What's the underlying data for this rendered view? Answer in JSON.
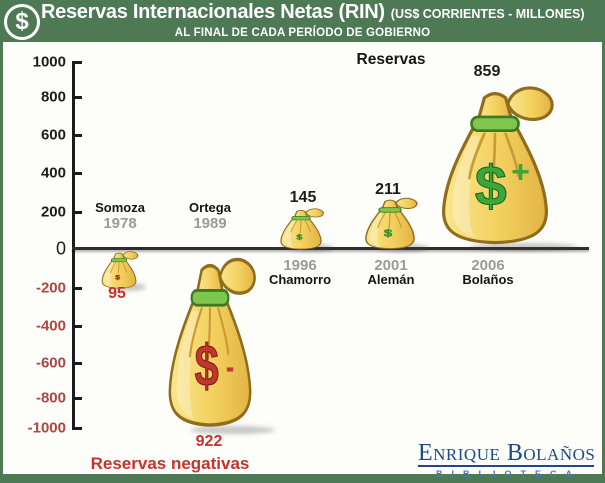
{
  "header": {
    "coin_symbol": "$",
    "title": "Reservas Internacionales Netas (RIN)",
    "units": "(US$ CORRIENTES - MILLONES)",
    "subtitle": "AL FINAL DE CADA PERÍODO DE GOBIERNO"
  },
  "chart_data": {
    "type": "bar",
    "title": "Reservas",
    "xlabel": "",
    "ylabel": "",
    "ylim": [
      -1000,
      1000
    ],
    "ytick_step": 200,
    "yticks": [
      1000,
      800,
      600,
      400,
      200,
      0,
      -200,
      -400,
      -600,
      -800,
      -1000
    ],
    "grid": false,
    "legend_position": "none",
    "categories": [
      "Somoza 1978",
      "Ortega 1989",
      "Chamorro 1996",
      "Alemán 2001",
      "Bolaños 2006"
    ],
    "series": [
      {
        "name": "Reservas (US$ corrientes - millones)",
        "values": [
          -95,
          -922,
          145,
          211,
          859
        ]
      }
    ],
    "points": [
      {
        "leader": "Somoza",
        "year": "1978",
        "value": -95,
        "label": "95"
      },
      {
        "leader": "Ortega",
        "year": "1989",
        "value": -922,
        "label": "922"
      },
      {
        "leader": "Chamorro",
        "year": "1996",
        "value": 145,
        "label": "145"
      },
      {
        "leader": "Alemán",
        "year": "2001",
        "value": 211,
        "label": "211"
      },
      {
        "leader": "Bolaños",
        "year": "2006",
        "value": 859,
        "label": "859"
      }
    ],
    "annotations": {
      "negative_note": "Reservas negativas"
    },
    "colors": {
      "header_green": "#4d7a54",
      "panel_bg": "#fdfdfa",
      "positive_text": "#1c1c1c",
      "negative_axis_text": "#ab4742",
      "negative_value_text": "#c2342c",
      "year_gray": "#9a9a9a",
      "bag_yellow": "#f3d05e",
      "bag_outline": "#8f6d1d",
      "band_green": "#7fc64f",
      "dollar_green": "#3da53a",
      "dollar_red": "#bf372f"
    }
  },
  "footer": {
    "brand": "Enrique Bolaños",
    "brand_sub": "BIBLIOTECA"
  }
}
